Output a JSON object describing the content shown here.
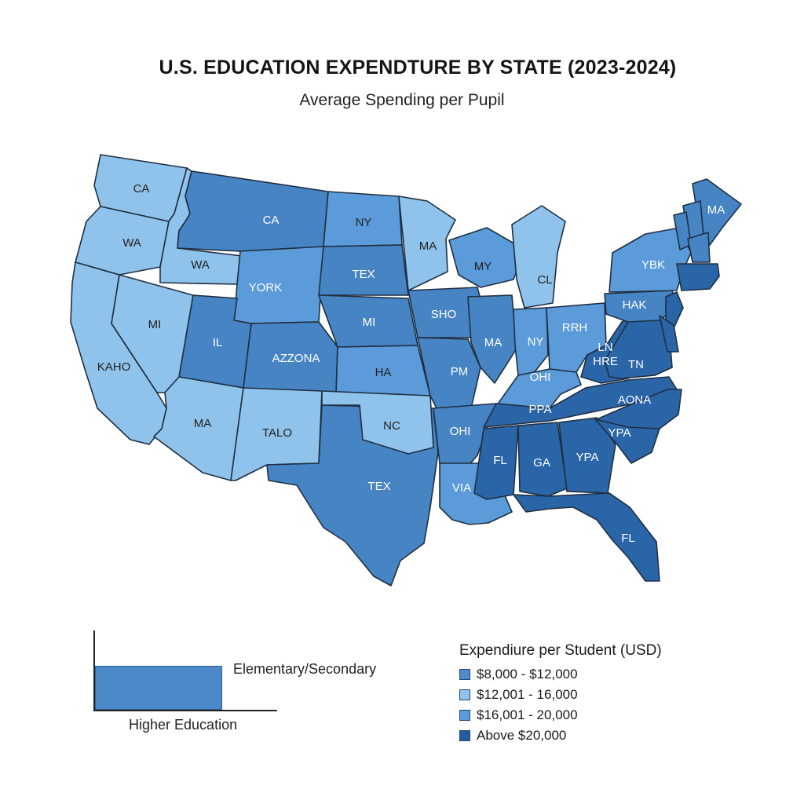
{
  "title": "U.S. EDUCATION EXPENDTURE BY STATE (2023-2024)",
  "subtitle": "Average Spending per Pupil",
  "colors": {
    "light": "#8fc3ec",
    "medium": "#5b9bd9",
    "blue": "#4684c4",
    "dark": "#2a65a8"
  },
  "states": [
    {
      "label": "CA",
      "tier": "light"
    },
    {
      "label": "WA",
      "tier": "light"
    },
    {
      "label": "WA",
      "tier": "light"
    },
    {
      "label": "KAHO",
      "tier": "light"
    },
    {
      "label": "MI",
      "tier": "light"
    },
    {
      "label": "CA",
      "tier": "blue"
    },
    {
      "label": "YORK",
      "tier": "medium"
    },
    {
      "label": "IL",
      "tier": "blue"
    },
    {
      "label": "AZZONA",
      "tier": "blue"
    },
    {
      "label": "MA",
      "tier": "light"
    },
    {
      "label": "TALO",
      "tier": "light"
    },
    {
      "label": "TEX",
      "tier": "blue"
    },
    {
      "label": "NY",
      "tier": "medium"
    },
    {
      "label": "MI",
      "tier": "blue"
    },
    {
      "label": "HA",
      "tier": "medium"
    },
    {
      "label": "NC",
      "tier": "light"
    },
    {
      "label": "TEX",
      "tier": "blue"
    },
    {
      "label": "MA",
      "tier": "light"
    },
    {
      "label": "SHO",
      "tier": "blue"
    },
    {
      "label": "PM",
      "tier": "blue"
    },
    {
      "label": "OHI",
      "tier": "blue"
    },
    {
      "label": "VIA",
      "tier": "medium"
    },
    {
      "label": "MY",
      "tier": "medium"
    },
    {
      "label": "MA",
      "tier": "blue"
    },
    {
      "label": "CL",
      "tier": "light"
    },
    {
      "label": "NY",
      "tier": "medium"
    },
    {
      "label": "RRH",
      "tier": "medium"
    },
    {
      "label": "OHI",
      "tier": "medium"
    },
    {
      "label": "LN HRE",
      "tier": "dark"
    },
    {
      "label": "PPA",
      "tier": "dark"
    },
    {
      "label": "FL",
      "tier": "dark"
    },
    {
      "label": "GA",
      "tier": "dark"
    },
    {
      "label": "YPA",
      "tier": "dark"
    },
    {
      "label": "FL",
      "tier": "dark"
    },
    {
      "label": "TN",
      "tier": "dark"
    },
    {
      "label": "AONA",
      "tier": "dark"
    },
    {
      "label": "YPA",
      "tier": "dark"
    },
    {
      "label": "HAK",
      "tier": "blue"
    },
    {
      "label": "YBK",
      "tier": "medium"
    },
    {
      "label": "MA",
      "tier": "blue"
    },
    {
      "label": "",
      "tier": "dark"
    },
    {
      "label": "",
      "tier": "dark"
    },
    {
      "label": "",
      "tier": "dark"
    },
    {
      "label": "",
      "tier": "blue"
    },
    {
      "label": "",
      "tier": "blue"
    },
    {
      "label": "",
      "tier": "blue"
    }
  ],
  "bar_key": {
    "top_label": "Elementary/Secondary",
    "bottom_label": "Higher Education"
  },
  "legend": {
    "title": "Expendiure per Student (USD)",
    "items": [
      {
        "label": "$8,000 - $12,000",
        "color": "#4f8acb"
      },
      {
        "label": "$12,001 - 16,000",
        "color": "#8fc3ec"
      },
      {
        "label": "$16,001 - 20,000",
        "color": "#5b9bd9"
      },
      {
        "label": "Above $20,000",
        "color": "#255c9e"
      }
    ]
  }
}
